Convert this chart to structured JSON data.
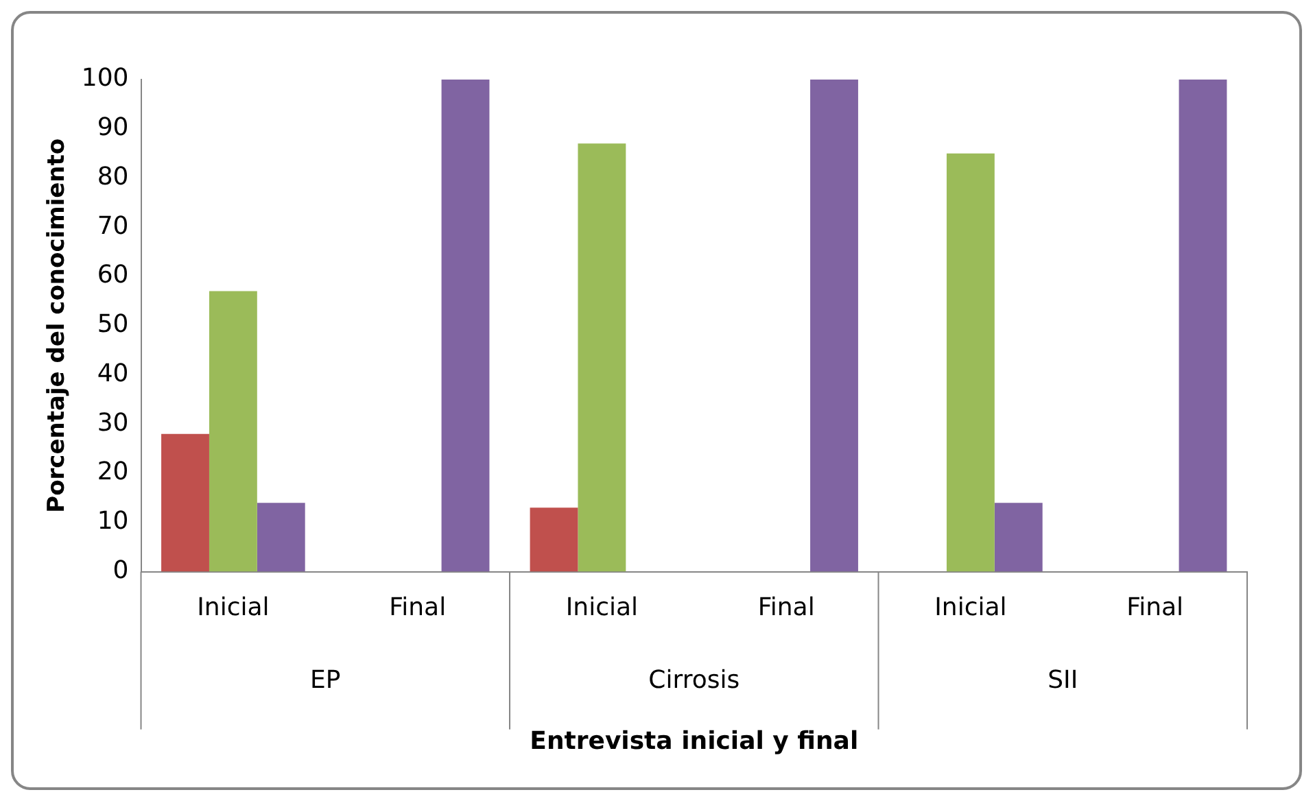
{
  "chart_data": {
    "type": "bar",
    "xlabel": "Entrevista inicial y final",
    "ylabel": "Porcentaje del conocimiento",
    "categories": [
      "Inicial",
      "Final",
      "Inicial",
      "Final",
      "Inicial",
      "Final"
    ],
    "annotations": [
      "EP",
      "Cirrosis",
      "SII"
    ],
    "series": [
      {
        "color": "#c0504d",
        "values": [
          28,
          0,
          13,
          0,
          0,
          0
        ]
      },
      {
        "color": "#9bbb59",
        "values": [
          57,
          0,
          87,
          0,
          85,
          0
        ]
      },
      {
        "color": "#8064a2",
        "values": [
          14,
          100,
          0,
          100,
          14,
          100
        ]
      }
    ],
    "ylim": [
      0,
      100
    ],
    "yticks": [
      0,
      10,
      20,
      30,
      40,
      50,
      60,
      70,
      80,
      90,
      100
    ],
    "grid": false,
    "legend": false
  }
}
